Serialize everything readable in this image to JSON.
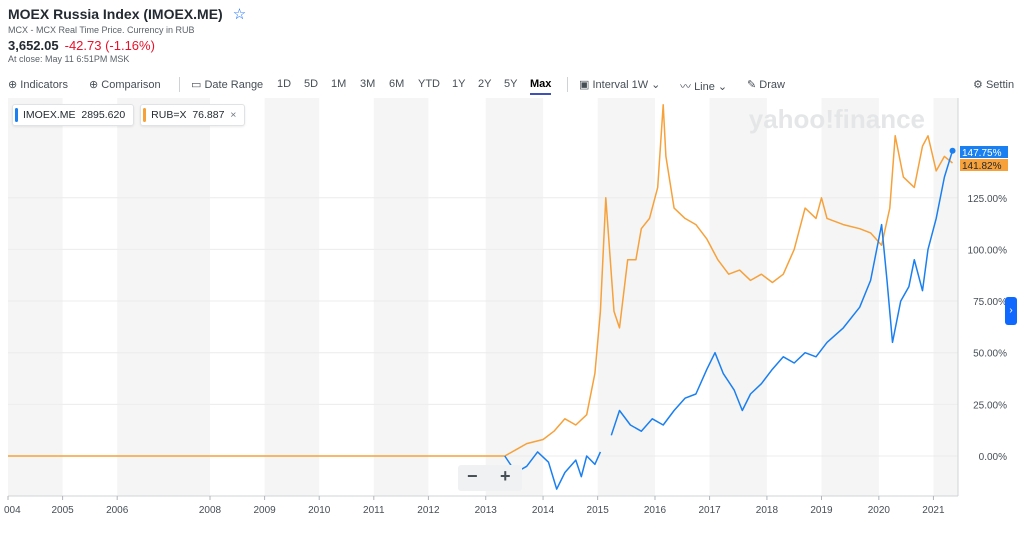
{
  "header": {
    "title": "MOEX Russia Index (IMOEX.ME)",
    "subtitle": "MCX - MCX Real Time Price. Currency in RUB",
    "price": "3,652.05",
    "change": "-42.73 (-1.16%)",
    "close_time": "At close: May 11 6:51PM MSK"
  },
  "toolbar": {
    "indicators": "Indicators",
    "comparison": "Comparison",
    "date_range": "Date Range",
    "ranges": [
      "1D",
      "5D",
      "1M",
      "3M",
      "6M",
      "YTD",
      "1Y",
      "2Y",
      "5Y",
      "Max"
    ],
    "active_range": "Max",
    "interval_label": "Interval",
    "interval_value": "1W",
    "line_label": "Line",
    "draw": "Draw",
    "settings": "Settin"
  },
  "legend": [
    {
      "symbol": "IMOEX.ME",
      "value": "2895.620",
      "color": "#1a7ff0"
    },
    {
      "symbol": "RUB=X",
      "value": "76.887",
      "color": "#f6a13a",
      "close": "×"
    }
  ],
  "watermark": "yahoo!finance",
  "zoom": {
    "minus": "−",
    "plus": "+"
  },
  "chart_data": {
    "type": "line",
    "xlabel": "",
    "ylabel": "",
    "x_ticks": [
      "004",
      "2005",
      "2006",
      "2008",
      "2009",
      "2010",
      "2011",
      "2012",
      "2013",
      "2014",
      "2015",
      "2016",
      "2017",
      "2018",
      "2019",
      "2020",
      "2021"
    ],
    "x_tick_values": [
      2004,
      2005,
      2006,
      2007.7,
      2008.7,
      2009.7,
      2010.7,
      2011.7,
      2012.75,
      2013.8,
      2014.8,
      2015.85,
      2016.85,
      2017.9,
      2018.9,
      2019.95,
      2020.95
    ],
    "y_ticks": [
      "0.00%",
      "25.00%",
      "50.00%",
      "75.00%",
      "100.00%",
      "125.00%"
    ],
    "y_tick_values": [
      0,
      25,
      50,
      75,
      100,
      125
    ],
    "xlim": [
      2004,
      2021.4
    ],
    "ylim": [
      -20,
      170
    ],
    "last_labels": [
      {
        "text": "147.75%",
        "color": "#1a7ff0",
        "value": 147.75
      },
      {
        "text": "141.82%",
        "color": "#f6a13a",
        "value": 141.82
      }
    ],
    "series": [
      {
        "name": "RUB=X",
        "color": "#f6a13a",
        "points": [
          [
            2004,
            0
          ],
          [
            2013.1,
            0
          ],
          [
            2013.3,
            3
          ],
          [
            2013.5,
            6
          ],
          [
            2013.8,
            8
          ],
          [
            2014.0,
            12
          ],
          [
            2014.2,
            18
          ],
          [
            2014.4,
            15
          ],
          [
            2014.6,
            20
          ],
          [
            2014.75,
            40
          ],
          [
            2014.85,
            70
          ],
          [
            2014.95,
            125
          ],
          [
            2015.1,
            70
          ],
          [
            2015.2,
            62
          ],
          [
            2015.35,
            95
          ],
          [
            2015.5,
            95
          ],
          [
            2015.6,
            110
          ],
          [
            2015.75,
            115
          ],
          [
            2015.9,
            130
          ],
          [
            2016.0,
            170
          ],
          [
            2016.05,
            145
          ],
          [
            2016.2,
            120
          ],
          [
            2016.4,
            115
          ],
          [
            2016.6,
            112
          ],
          [
            2016.8,
            105
          ],
          [
            2017.0,
            95
          ],
          [
            2017.2,
            88
          ],
          [
            2017.4,
            90
          ],
          [
            2017.6,
            85
          ],
          [
            2017.8,
            88
          ],
          [
            2018.0,
            84
          ],
          [
            2018.2,
            88
          ],
          [
            2018.4,
            100
          ],
          [
            2018.6,
            120
          ],
          [
            2018.8,
            115
          ],
          [
            2018.9,
            125
          ],
          [
            2019.0,
            115
          ],
          [
            2019.3,
            112
          ],
          [
            2019.6,
            110
          ],
          [
            2019.8,
            108
          ],
          [
            2020.0,
            102
          ],
          [
            2020.15,
            120
          ],
          [
            2020.25,
            155
          ],
          [
            2020.4,
            135
          ],
          [
            2020.6,
            130
          ],
          [
            2020.75,
            150
          ],
          [
            2020.85,
            155
          ],
          [
            2021.0,
            138
          ],
          [
            2021.15,
            145
          ],
          [
            2021.3,
            141.82
          ]
        ]
      },
      {
        "name": "IMOEX.ME",
        "color": "#1a7ff0",
        "points": [
          [
            2013.1,
            0
          ],
          [
            2013.3,
            -8
          ],
          [
            2013.5,
            -5
          ],
          [
            2013.7,
            2
          ],
          [
            2013.9,
            -3
          ],
          [
            2014.05,
            -16
          ],
          [
            2014.2,
            -8
          ],
          [
            2014.4,
            -2
          ],
          [
            2014.5,
            -10
          ],
          [
            2014.6,
            0
          ],
          [
            2014.75,
            -4
          ],
          [
            2014.85,
            2
          ],
          [
            2014.95,
            null
          ],
          [
            2015.05,
            10
          ],
          [
            2015.2,
            22
          ],
          [
            2015.4,
            15
          ],
          [
            2015.6,
            12
          ],
          [
            2015.8,
            18
          ],
          [
            2016.0,
            15
          ],
          [
            2016.2,
            22
          ],
          [
            2016.4,
            28
          ],
          [
            2016.6,
            30
          ],
          [
            2016.8,
            42
          ],
          [
            2016.95,
            50
          ],
          [
            2017.1,
            40
          ],
          [
            2017.3,
            32
          ],
          [
            2017.45,
            22
          ],
          [
            2017.6,
            30
          ],
          [
            2017.8,
            35
          ],
          [
            2018.0,
            42
          ],
          [
            2018.2,
            48
          ],
          [
            2018.4,
            45
          ],
          [
            2018.6,
            50
          ],
          [
            2018.8,
            48
          ],
          [
            2019.0,
            55
          ],
          [
            2019.3,
            62
          ],
          [
            2019.6,
            72
          ],
          [
            2019.8,
            85
          ],
          [
            2020.0,
            112
          ],
          [
            2020.1,
            85
          ],
          [
            2020.2,
            55
          ],
          [
            2020.35,
            75
          ],
          [
            2020.5,
            82
          ],
          [
            2020.6,
            95
          ],
          [
            2020.75,
            80
          ],
          [
            2020.85,
            100
          ],
          [
            2021.0,
            115
          ],
          [
            2021.15,
            135
          ],
          [
            2021.3,
            147.75
          ]
        ]
      }
    ]
  }
}
